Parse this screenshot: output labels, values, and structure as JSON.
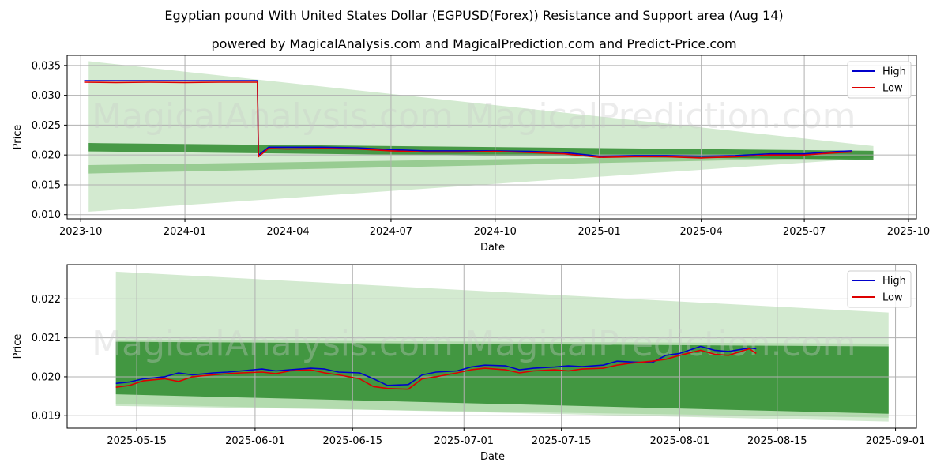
{
  "title": "Egyptian pound With United States Dollar (EGPUSD(Forex)) Resistance and Support area (Aug 14)",
  "subtitle": "powered by MagicalAnalysis.com and MagicalPrediction.com and Predict-Price.com",
  "watermarks": [
    "MagicalAnalysis.com",
    "MagicalPrediction.com"
  ],
  "colors": {
    "high": "#0000cc",
    "low": "#dd0000",
    "band_light": "#a8d5a2",
    "band_dark": "#2e8b2e",
    "grid": "#b0b0b0"
  },
  "chart_data": [
    {
      "type": "line",
      "xlabel": "Date",
      "ylabel": "Price",
      "grid": true,
      "legend_placement": "top-right",
      "x_ticks": [
        "2023-10",
        "2024-01",
        "2024-04",
        "2024-07",
        "2024-10",
        "2025-01",
        "2025-04",
        "2025-07",
        "2025-10"
      ],
      "y_ticks": [
        "0.010",
        "0.015",
        "0.020",
        "0.025",
        "0.030",
        "0.035"
      ],
      "xlim": [
        "2023-09-19",
        "2025-10-08"
      ],
      "ylim": [
        0.0093,
        0.0367
      ],
      "series": [
        {
          "name": "High",
          "x": [
            "2023-10-04",
            "2023-11-01",
            "2023-12-01",
            "2024-01-01",
            "2024-02-01",
            "2024-03-05",
            "2024-03-06",
            "2024-03-15",
            "2024-04-01",
            "2024-05-01",
            "2024-06-01",
            "2024-07-01",
            "2024-08-01",
            "2024-09-01",
            "2024-10-01",
            "2024-11-01",
            "2024-12-01",
            "2025-01-01",
            "2025-02-01",
            "2025-03-01",
            "2025-04-01",
            "2025-05-01",
            "2025-06-01",
            "2025-07-01",
            "2025-08-01",
            "2025-08-12"
          ],
          "values": [
            0.03245,
            0.03245,
            0.03245,
            0.03245,
            0.03245,
            0.03245,
            0.02,
            0.0213,
            0.0213,
            0.0213,
            0.0212,
            0.0209,
            0.0207,
            0.0207,
            0.0207,
            0.0206,
            0.0204,
            0.0198,
            0.0199,
            0.0199,
            0.0198,
            0.0199,
            0.0202,
            0.0202,
            0.0206,
            0.0207
          ]
        },
        {
          "name": "Low",
          "x": [
            "2023-10-04",
            "2023-11-01",
            "2023-12-01",
            "2024-01-01",
            "2024-02-01",
            "2024-03-05",
            "2024-03-06",
            "2024-03-15",
            "2024-04-01",
            "2024-05-01",
            "2024-06-01",
            "2024-07-01",
            "2024-08-01",
            "2024-09-01",
            "2024-10-01",
            "2024-11-01",
            "2024-12-01",
            "2025-01-01",
            "2025-02-01",
            "2025-03-01",
            "2025-04-01",
            "2025-05-01",
            "2025-06-01",
            "2025-07-01",
            "2025-08-01",
            "2025-08-12"
          ],
          "values": [
            0.0322,
            0.03215,
            0.0322,
            0.03215,
            0.0322,
            0.0322,
            0.0197,
            0.0211,
            0.021,
            0.0211,
            0.021,
            0.0207,
            0.0205,
            0.0205,
            0.0206,
            0.0204,
            0.0202,
            0.0196,
            0.0197,
            0.0197,
            0.0195,
            0.0197,
            0.02,
            0.02,
            0.0204,
            0.0205
          ]
        }
      ],
      "bands": [
        {
          "x": [
            "2023-10-08",
            "2025-08-31"
          ],
          "upper": [
            0.0357,
            0.0215
          ],
          "lower": [
            0.0105,
            0.0195
          ],
          "shade": "light"
        },
        {
          "x": [
            "2023-10-08",
            "2025-08-31"
          ],
          "upper": [
            0.0183,
            0.0202
          ],
          "lower": [
            0.0169,
            0.0196
          ],
          "shade": "mid"
        },
        {
          "x": [
            "2023-10-08",
            "2025-08-31"
          ],
          "upper": [
            0.022,
            0.0207
          ],
          "lower": [
            0.0206,
            0.0192
          ],
          "shade": "dark"
        }
      ]
    },
    {
      "type": "line",
      "xlabel": "Date",
      "ylabel": "Price",
      "grid": true,
      "legend_placement": "top-right",
      "x_ticks": [
        "2025-05-15",
        "2025-06-01",
        "2025-06-15",
        "2025-07-01",
        "2025-07-15",
        "2025-08-01",
        "2025-08-15",
        "2025-09-01"
      ],
      "y_ticks": [
        "0.019",
        "0.020",
        "0.021",
        "0.022"
      ],
      "xlim": [
        "2025-05-05",
        "2025-09-04"
      ],
      "ylim": [
        0.01868,
        0.02288
      ],
      "series": [
        {
          "name": "High",
          "x": [
            "2025-05-12",
            "2025-05-14",
            "2025-05-16",
            "2025-05-19",
            "2025-05-21",
            "2025-05-23",
            "2025-05-26",
            "2025-05-28",
            "2025-05-30",
            "2025-06-02",
            "2025-06-04",
            "2025-06-06",
            "2025-06-09",
            "2025-06-11",
            "2025-06-13",
            "2025-06-16",
            "2025-06-18",
            "2025-06-20",
            "2025-06-23",
            "2025-06-25",
            "2025-06-27",
            "2025-06-30",
            "2025-07-02",
            "2025-07-04",
            "2025-07-07",
            "2025-07-09",
            "2025-07-11",
            "2025-07-14",
            "2025-07-16",
            "2025-07-18",
            "2025-07-21",
            "2025-07-23",
            "2025-07-25",
            "2025-07-28",
            "2025-07-30",
            "2025-08-01",
            "2025-08-04",
            "2025-08-06",
            "2025-08-08",
            "2025-08-11",
            "2025-08-12"
          ],
          "values": [
            0.01983,
            0.01987,
            0.01995,
            0.02,
            0.0201,
            0.02005,
            0.0201,
            0.02012,
            0.02015,
            0.0202,
            0.02015,
            0.02018,
            0.02022,
            0.0202,
            0.02012,
            0.0201,
            0.01995,
            0.01978,
            0.0198,
            0.02005,
            0.02012,
            0.02015,
            0.02025,
            0.0203,
            0.02028,
            0.02018,
            0.02022,
            0.02025,
            0.02028,
            0.02026,
            0.0203,
            0.0204,
            0.02038,
            0.02036,
            0.02055,
            0.0206,
            0.02078,
            0.02068,
            0.02065,
            0.02074,
            0.02072
          ]
        },
        {
          "name": "Low",
          "x": [
            "2025-05-12",
            "2025-05-14",
            "2025-05-16",
            "2025-05-19",
            "2025-05-21",
            "2025-05-23",
            "2025-05-26",
            "2025-05-28",
            "2025-05-30",
            "2025-06-02",
            "2025-06-04",
            "2025-06-06",
            "2025-06-09",
            "2025-06-11",
            "2025-06-13",
            "2025-06-16",
            "2025-06-18",
            "2025-06-20",
            "2025-06-23",
            "2025-06-25",
            "2025-06-27",
            "2025-06-30",
            "2025-07-02",
            "2025-07-04",
            "2025-07-07",
            "2025-07-09",
            "2025-07-11",
            "2025-07-14",
            "2025-07-16",
            "2025-07-18",
            "2025-07-21",
            "2025-07-23",
            "2025-07-25",
            "2025-07-28",
            "2025-07-30",
            "2025-08-01",
            "2025-08-04",
            "2025-08-06",
            "2025-08-08",
            "2025-08-11",
            "2025-08-12"
          ],
          "values": [
            0.01973,
            0.01978,
            0.0199,
            0.01995,
            0.01988,
            0.02,
            0.02005,
            0.02008,
            0.0201,
            0.02012,
            0.02008,
            0.02015,
            0.02018,
            0.0201,
            0.02005,
            0.01995,
            0.01975,
            0.0197,
            0.01968,
            0.01995,
            0.02,
            0.0201,
            0.02018,
            0.02022,
            0.02018,
            0.0201,
            0.02015,
            0.02018,
            0.02015,
            0.0202,
            0.02022,
            0.0203,
            0.02035,
            0.0204,
            0.02045,
            0.02055,
            0.02068,
            0.02058,
            0.02055,
            0.02072,
            0.0206
          ]
        }
      ],
      "bands": [
        {
          "x": [
            "2025-05-12",
            "2025-08-31"
          ],
          "upper": [
            0.0227,
            0.02165
          ],
          "lower": [
            0.0193,
            0.01885
          ],
          "shade": "light"
        },
        {
          "x": [
            "2025-05-12",
            "2025-08-31"
          ],
          "upper": [
            0.02095,
            0.02085
          ],
          "lower": [
            0.01925,
            0.01895
          ],
          "shade": "light2"
        },
        {
          "x": [
            "2025-05-12",
            "2025-08-31"
          ],
          "upper": [
            0.0209,
            0.02078
          ],
          "lower": [
            0.01955,
            0.01905
          ],
          "shade": "dark"
        }
      ]
    }
  ]
}
